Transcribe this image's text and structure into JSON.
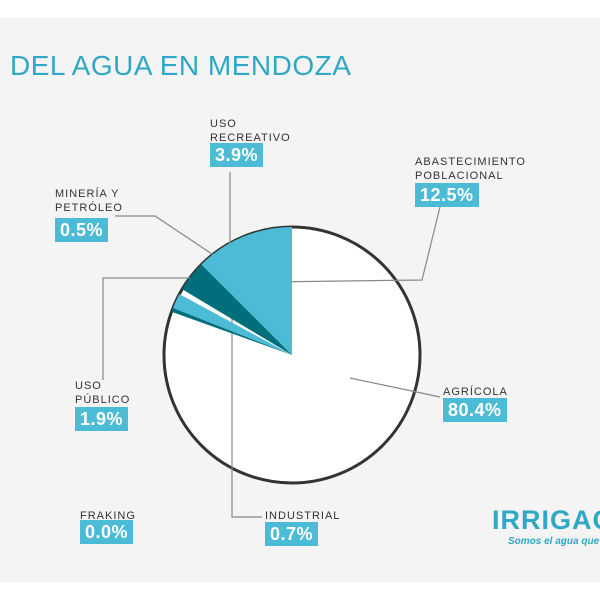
{
  "chart_data": {
    "type": "pie",
    "title": "DEL AGUA EN MENDOZA",
    "categories": [
      "ABASTECIMIENTO\nPOBLACIONAL",
      "USO\nRECREATIVO",
      "INDUSTRIAL",
      "USO\nPÚBLICO",
      "MINERÍA Y\nPETRÓLEO",
      "FRAKING",
      "AGRÍCOLA"
    ],
    "values": [
      12.5,
      3.9,
      0.7,
      1.9,
      0.5,
      0.0,
      80.4
    ],
    "value_labels": [
      "12.5%",
      "3.9%",
      "0.7%",
      "1.9%",
      "0.5%",
      "0.0%",
      "80.4%"
    ],
    "colors": [
      "#4bbbd6",
      "#006f7c",
      "#ffffff",
      "#4bbbd6",
      "#006f7c",
      "#4bbbd6",
      "#ffffff"
    ]
  },
  "logo": "IRRIGAC",
  "tagline": "Somos el agua que p"
}
